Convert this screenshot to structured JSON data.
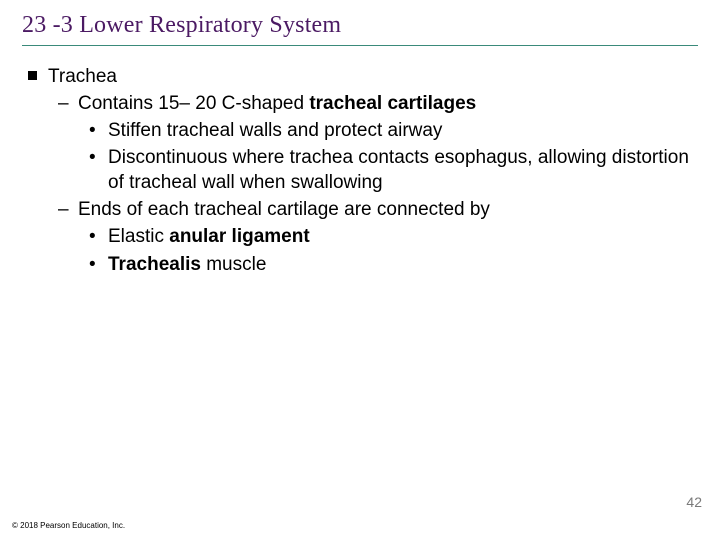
{
  "title": "23 -3 Lower Respiratory System",
  "bullets": {
    "l1_trachea": "Trachea",
    "l2_contains_pre": "Contains 15– 20 C-shaped ",
    "l2_contains_bold": "tracheal cartilages",
    "l3_stiffen": "Stiffen tracheal walls and protect airway",
    "l3_discont": "Discontinuous where trachea contacts esophagus, allowing distortion of tracheal wall when swallowing",
    "l2_ends": "Ends of each tracheal cartilage are connected by",
    "l3_elastic_pre": "Elastic ",
    "l3_elastic_bold": "anular ligament",
    "l3_trachealis_bold": "Trachealis",
    "l3_trachealis_post": " muscle",
    "dash": "–"
  },
  "page_number": "42",
  "copyright": "© 2018 Pearson Education, Inc.",
  "colors": {
    "title_color": "#4b1a63",
    "rule_color": "#3a8a7a",
    "page_num_color": "#7a7a7a"
  }
}
